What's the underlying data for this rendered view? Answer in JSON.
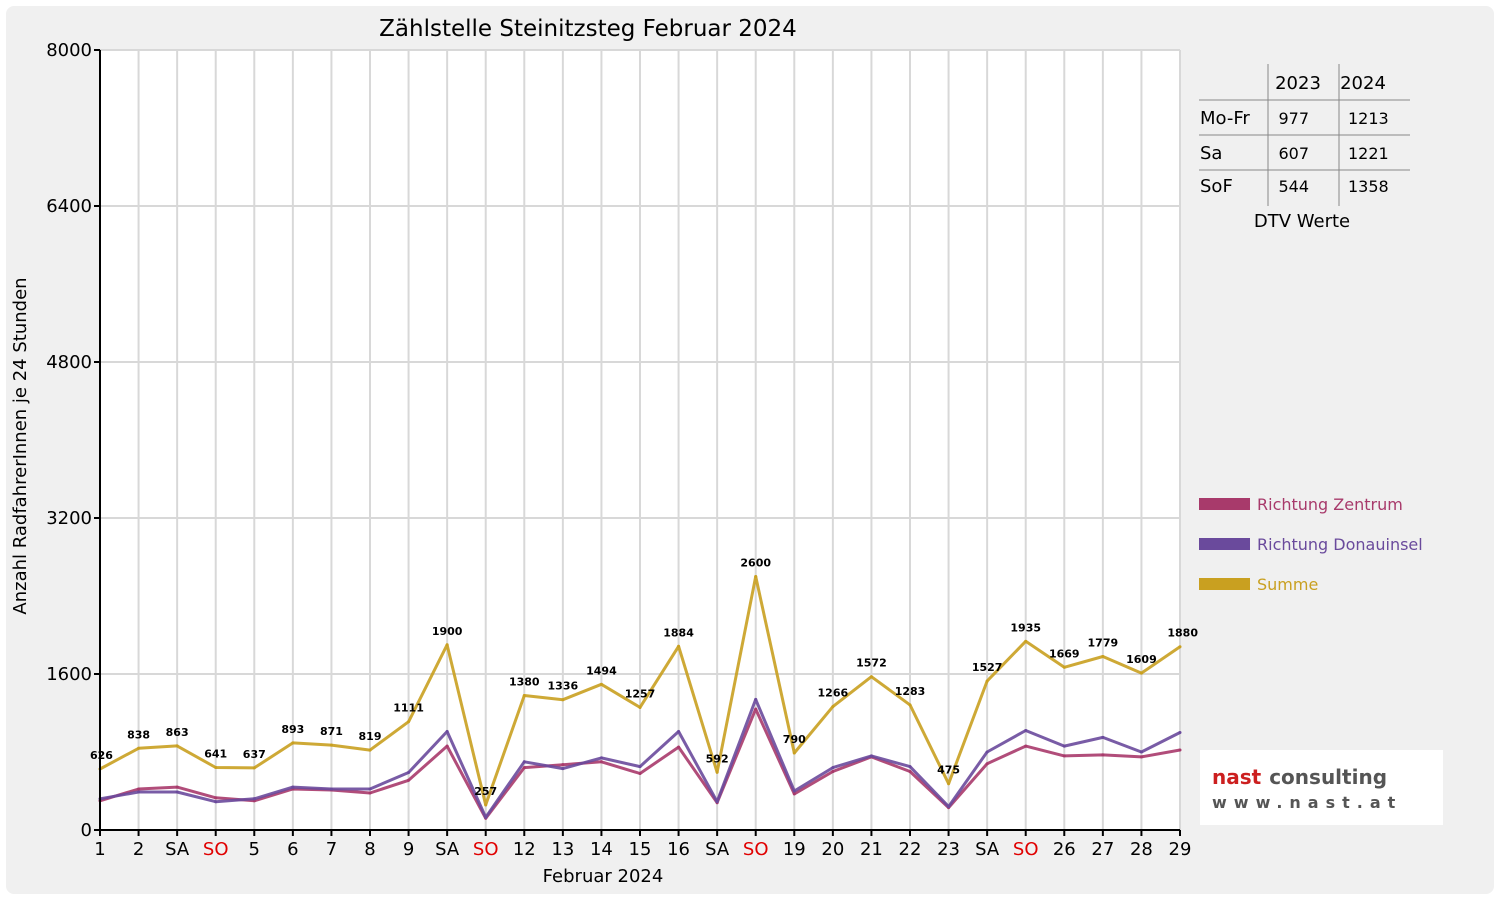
{
  "chart_data": {
    "type": "line",
    "title": "Zählstelle Steinitzsteg Februar 2024",
    "xlabel": "Februar 2024",
    "ylabel": "Anzahl RadfahrerInnen je 24 Stunden",
    "ylim": [
      0,
      8000
    ],
    "yticks": [
      "0",
      "1600",
      "3200",
      "4800",
      "6400",
      "8000"
    ],
    "grid": true,
    "legend_position": "right",
    "categories": [
      "1",
      "2",
      "SA",
      "SO",
      "5",
      "6",
      "7",
      "8",
      "9",
      "SA",
      "SO",
      "12",
      "13",
      "14",
      "15",
      "16",
      "SA",
      "SO",
      "19",
      "20",
      "21",
      "22",
      "23",
      "SA",
      "SO",
      "26",
      "27",
      "28",
      "29"
    ],
    "sunday_label": "SO",
    "series": [
      {
        "name": "Richtung Zentrum",
        "color": "#a83a6b",
        "values": [
          300,
          420,
          440,
          330,
          300,
          420,
          410,
          380,
          510,
          860,
          120,
          640,
          670,
          700,
          580,
          850,
          280,
          1240,
          370,
          600,
          750,
          600,
          230,
          680,
          860,
          760,
          770,
          750,
          820
        ]
      },
      {
        "name": "Richtung Donauinsel",
        "color": "#6a4a9c",
        "values": [
          320,
          390,
          390,
          290,
          320,
          440,
          420,
          420,
          590,
          1010,
          130,
          700,
          630,
          740,
          650,
          1010,
          290,
          1340,
          400,
          640,
          760,
          650,
          240,
          800,
          1020,
          860,
          950,
          800,
          1000
        ]
      },
      {
        "name": "Summe",
        "color": "#c9a020",
        "values": [
          626,
          838,
          863,
          641,
          637,
          893,
          871,
          819,
          1111,
          1900,
          257,
          1380,
          1336,
          1494,
          1257,
          1884,
          592,
          2600,
          790,
          1266,
          1572,
          1283,
          475,
          1527,
          1935,
          1669,
          1779,
          1609,
          1880
        ]
      }
    ],
    "data_labels": [
      "626",
      "838",
      "863",
      "641",
      "637",
      "893",
      "871",
      "819",
      "1111",
      "1900",
      "257",
      "1380",
      "1336",
      "1494",
      "1257",
      "1884",
      "592",
      "2600",
      "790",
      "1266",
      "1572",
      "1283",
      "475",
      "1527",
      "1935",
      "1669",
      "1779",
      "1609",
      "1880"
    ]
  },
  "dtv_table": {
    "header": [
      "2023",
      "2024"
    ],
    "rows": [
      {
        "label": "Mo-Fr",
        "v2023": "977",
        "v2024": "1213"
      },
      {
        "label": "Sa",
        "v2023": "607",
        "v2024": "1221"
      },
      {
        "label": "SoF",
        "v2023": "544",
        "v2024": "1358"
      }
    ],
    "caption": "DTV Werte"
  },
  "logo": {
    "word1": "nast",
    "word2": "consulting",
    "url": "www.nast.at",
    "color_red": "#cc1f1f",
    "color_gray": "#555555"
  }
}
